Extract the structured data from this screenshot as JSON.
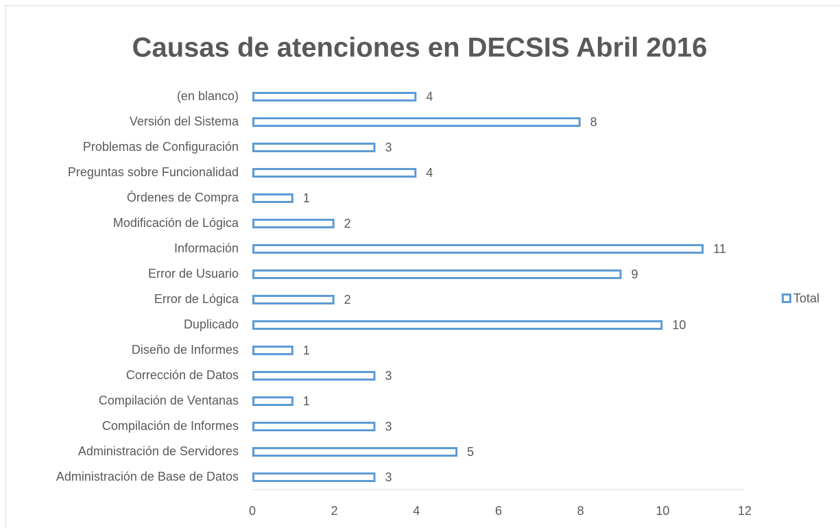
{
  "chart_data": {
    "type": "bar",
    "orientation": "horizontal",
    "title": "Causas de atenciones en DECSIS Abril 2016",
    "categories": [
      "(en blanco)",
      "Versión del Sistema",
      "Problemas de Configuración",
      "Preguntas sobre Funcionalidad",
      "Órdenes de Compra",
      "Modificación de Lógica",
      "Información",
      "Error de Usuario",
      "Error de Lógica",
      "Duplicado",
      "Diseño de Informes",
      "Corrección de Datos",
      "Compilación de Ventanas",
      "Compilación de Informes",
      "Administración de Servidores",
      "Administración de Base de Datos"
    ],
    "series": [
      {
        "name": "Total",
        "color": "#5b9bd5",
        "values": [
          4,
          8,
          3,
          4,
          1,
          2,
          11,
          9,
          2,
          10,
          1,
          3,
          1,
          3,
          5,
          3
        ]
      }
    ],
    "xlim": [
      0,
      12
    ],
    "xticks": [
      0,
      2,
      4,
      6,
      8,
      10,
      12
    ],
    "grid": false,
    "legend": "right",
    "data_labels": true
  }
}
